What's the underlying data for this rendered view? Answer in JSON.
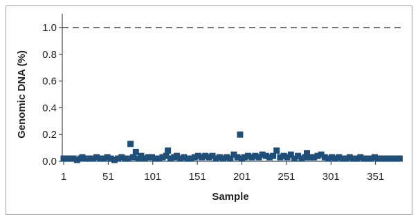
{
  "chart_data": {
    "type": "scatter",
    "xlabel": "Sample",
    "ylabel": "Genomic DNA (%)",
    "xlim": [
      1,
      380
    ],
    "ylim": [
      0,
      1.0
    ],
    "xticks": [
      1,
      51,
      101,
      151,
      201,
      251,
      301,
      351
    ],
    "yticks": [
      0.0,
      0.2,
      0.4,
      0.6,
      0.8,
      1.0
    ],
    "ytick_labels": [
      "0.0",
      "0.2",
      "0.4",
      "0.6",
      "0.8",
      "1.0"
    ],
    "reference_line": {
      "y": 1.0,
      "style": "dashed"
    },
    "grid": false,
    "legend": "none",
    "marker_color": "#1f4e79",
    "series": [
      {
        "marker": "square",
        "points": [
          [
            1,
            0.02
          ],
          [
            4,
            0.02
          ],
          [
            8,
            0.02
          ],
          [
            12,
            0.02
          ],
          [
            16,
            0.01
          ],
          [
            20,
            0.02
          ],
          [
            22,
            0.03
          ],
          [
            26,
            0.02
          ],
          [
            30,
            0.02
          ],
          [
            34,
            0.02
          ],
          [
            38,
            0.03
          ],
          [
            42,
            0.02
          ],
          [
            46,
            0.02
          ],
          [
            50,
            0.03
          ],
          [
            54,
            0.02
          ],
          [
            58,
            0.01
          ],
          [
            62,
            0.02
          ],
          [
            66,
            0.03
          ],
          [
            70,
            0.02
          ],
          [
            73,
            0.02
          ],
          [
            76,
            0.13
          ],
          [
            79,
            0.03
          ],
          [
            82,
            0.07
          ],
          [
            85,
            0.02
          ],
          [
            88,
            0.04
          ],
          [
            92,
            0.02
          ],
          [
            96,
            0.03
          ],
          [
            100,
            0.03
          ],
          [
            104,
            0.02
          ],
          [
            108,
            0.02
          ],
          [
            112,
            0.03
          ],
          [
            116,
            0.04
          ],
          [
            118,
            0.08
          ],
          [
            121,
            0.02
          ],
          [
            125,
            0.03
          ],
          [
            128,
            0.04
          ],
          [
            132,
            0.02
          ],
          [
            136,
            0.03
          ],
          [
            140,
            0.02
          ],
          [
            144,
            0.02
          ],
          [
            148,
            0.03
          ],
          [
            152,
            0.04
          ],
          [
            156,
            0.03
          ],
          [
            160,
            0.04
          ],
          [
            164,
            0.03
          ],
          [
            168,
            0.04
          ],
          [
            172,
            0.02
          ],
          [
            176,
            0.03
          ],
          [
            180,
            0.02
          ],
          [
            184,
            0.03
          ],
          [
            188,
            0.02
          ],
          [
            192,
            0.05
          ],
          [
            196,
            0.03
          ],
          [
            199,
            0.2
          ],
          [
            201,
            0.02
          ],
          [
            204,
            0.03
          ],
          [
            208,
            0.04
          ],
          [
            212,
            0.03
          ],
          [
            216,
            0.04
          ],
          [
            220,
            0.03
          ],
          [
            224,
            0.05
          ],
          [
            228,
            0.04
          ],
          [
            232,
            0.03
          ],
          [
            236,
            0.04
          ],
          [
            240,
            0.08
          ],
          [
            244,
            0.03
          ],
          [
            248,
            0.04
          ],
          [
            252,
            0.03
          ],
          [
            256,
            0.05
          ],
          [
            260,
            0.02
          ],
          [
            264,
            0.04
          ],
          [
            268,
            0.02
          ],
          [
            272,
            0.03
          ],
          [
            274,
            0.06
          ],
          [
            278,
            0.03
          ],
          [
            282,
            0.03
          ],
          [
            286,
            0.04
          ],
          [
            290,
            0.05
          ],
          [
            294,
            0.03
          ],
          [
            298,
            0.02
          ],
          [
            302,
            0.03
          ],
          [
            306,
            0.02
          ],
          [
            310,
            0.03
          ],
          [
            314,
            0.02
          ],
          [
            318,
            0.02
          ],
          [
            322,
            0.03
          ],
          [
            326,
            0.02
          ],
          [
            330,
            0.02
          ],
          [
            334,
            0.03
          ],
          [
            338,
            0.02
          ],
          [
            342,
            0.02
          ],
          [
            346,
            0.02
          ],
          [
            350,
            0.03
          ],
          [
            354,
            0.02
          ],
          [
            358,
            0.02
          ],
          [
            362,
            0.02
          ],
          [
            366,
            0.02
          ],
          [
            370,
            0.02
          ],
          [
            374,
            0.02
          ],
          [
            378,
            0.02
          ]
        ]
      }
    ]
  }
}
